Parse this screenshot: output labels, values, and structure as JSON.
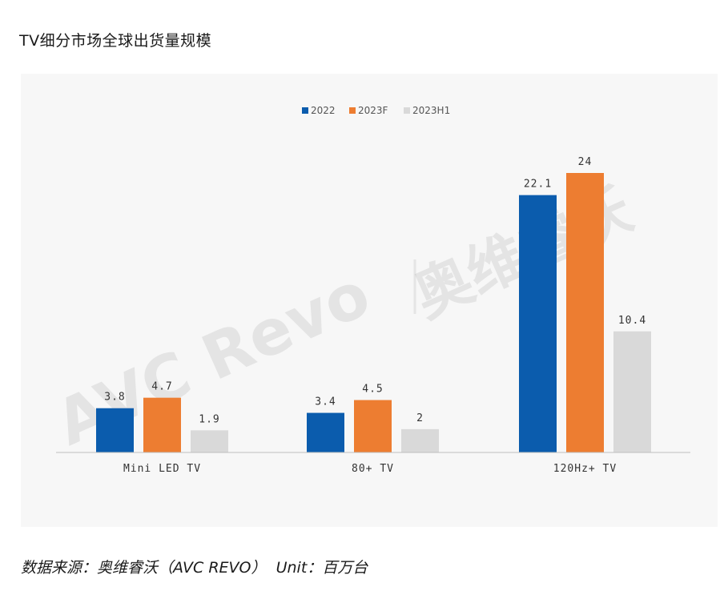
{
  "title": "TV细分市场全球出货量规模",
  "source": {
    "prefix": "数据来源：奥维睿沃（AVC REVO）",
    "unit": "Unit：百万台"
  },
  "watermark": {
    "en": "AVC Revo",
    "cn": "奥维睿沃"
  },
  "colors": {
    "2022": "#0b5cad",
    "2023F": "#ed7d31",
    "2023H1": "#d9d9d9"
  },
  "chart_data": {
    "type": "bar",
    "title": "",
    "xlabel": "",
    "ylabel": "",
    "categories": [
      "Mini LED TV",
      "80+ TV",
      "120Hz+ TV"
    ],
    "series": [
      {
        "name": "2022",
        "values": [
          3.8,
          3.4,
          22.1
        ],
        "labels": [
          "3.8",
          "3.4",
          "22.1"
        ]
      },
      {
        "name": "2023F",
        "values": [
          4.7,
          4.5,
          24
        ],
        "labels": [
          "4.7",
          "4.5",
          "24"
        ]
      },
      {
        "name": "2023H1",
        "values": [
          1.9,
          2,
          10.4
        ],
        "labels": [
          "1.9",
          "2",
          "10.4"
        ]
      }
    ],
    "ylim": [
      0,
      28
    ],
    "grid": false,
    "legend_position": "top-center"
  }
}
